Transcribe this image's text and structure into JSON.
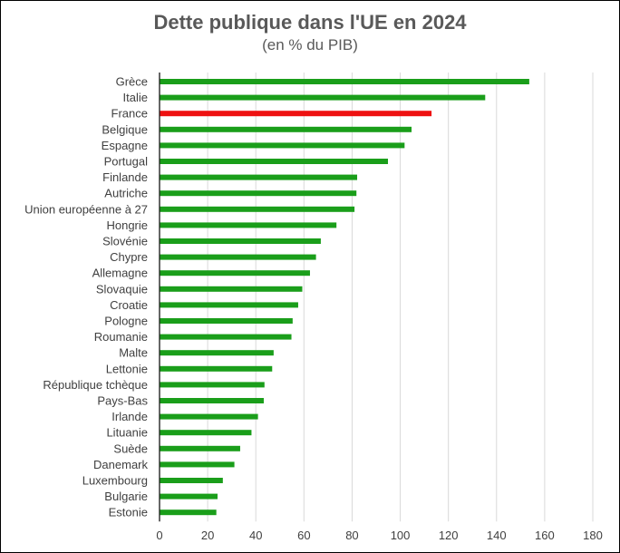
{
  "title": "Dette publique dans l'UE en 2024",
  "subtitle": "(en % du PIB)",
  "colors": {
    "default": "#1a9e1a",
    "highlight": "#ee1111",
    "grid": "#d9d9d9",
    "axis": "#000000"
  },
  "chart_data": {
    "type": "bar",
    "orientation": "horizontal",
    "categories": [
      "Grèce",
      "Italie",
      "France",
      "Belgique",
      "Espagne",
      "Portugal",
      "Finlande",
      "Autriche",
      "Union européenne à 27",
      "Hongrie",
      "Slovénie",
      "Chypre",
      "Allemagne",
      "Slovaquie",
      "Croatie",
      "Pologne",
      "Roumanie",
      "Malte",
      "Lettonie",
      "République tchèque",
      "Pays-Bas",
      "Irlande",
      "Lituanie",
      "Suède",
      "Danemark",
      "Luxembourg",
      "Bulgarie",
      "Estonie"
    ],
    "values": [
      153.6,
      135.3,
      113.0,
      104.7,
      101.8,
      94.9,
      82.1,
      81.8,
      81.0,
      73.5,
      67.0,
      65.0,
      62.5,
      59.3,
      57.6,
      55.3,
      54.8,
      47.4,
      46.8,
      43.6,
      43.3,
      40.9,
      38.2,
      33.5,
      31.1,
      26.3,
      24.1,
      23.6
    ],
    "highlight": "France",
    "xlim": [
      0,
      180
    ],
    "xticks": [
      0,
      20,
      40,
      60,
      80,
      100,
      120,
      140,
      160,
      180
    ],
    "grid": true,
    "legend": false
  }
}
